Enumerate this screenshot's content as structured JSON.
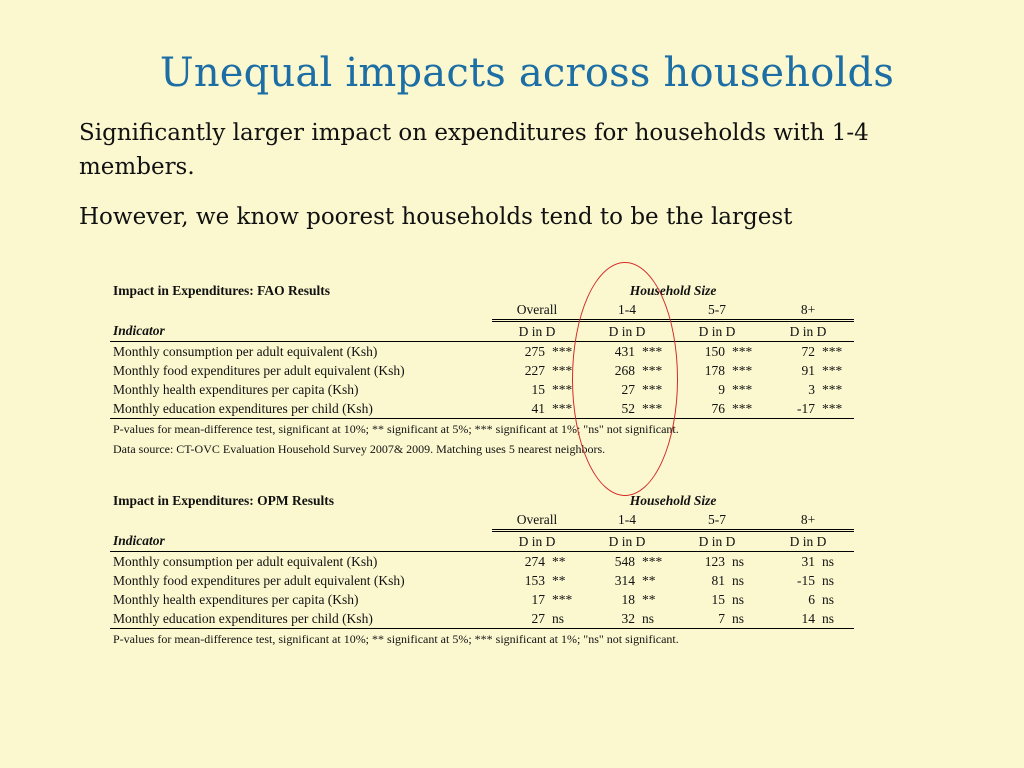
{
  "slide": {
    "title": "Unequal impacts across households",
    "bullets": [
      "Significantly larger impact on expenditures for households with 1-4 members.",
      "However, we know poorest households tend to be the largest"
    ]
  },
  "tables": [
    {
      "title": "Impact in Expenditures: FAO Results",
      "group_header": "Household Size",
      "columns": [
        "Overall",
        "1-4",
        "5-7",
        "8+"
      ],
      "indicator_label": "Indicator",
      "subheader": "D in D",
      "rows": [
        {
          "label": "Monthly consumption per adult equivalent (Ksh)",
          "cells": [
            [
              "275",
              "***"
            ],
            [
              "431",
              "***"
            ],
            [
              "150",
              "***"
            ],
            [
              "72",
              "***"
            ]
          ]
        },
        {
          "label": "Monthly food expenditures per adult equivalent (Ksh)",
          "cells": [
            [
              "227",
              "***"
            ],
            [
              "268",
              "***"
            ],
            [
              "178",
              "***"
            ],
            [
              "91",
              "***"
            ]
          ]
        },
        {
          "label": "Monthly health expenditures per capita (Ksh)",
          "cells": [
            [
              "15",
              "***"
            ],
            [
              "27",
              "***"
            ],
            [
              "9",
              "***"
            ],
            [
              "3",
              "***"
            ]
          ]
        },
        {
          "label": "Monthly education expenditures per child (Ksh)",
          "cells": [
            [
              "41",
              "***"
            ],
            [
              "52",
              "***"
            ],
            [
              "76",
              "***"
            ],
            [
              "-17",
              "***"
            ]
          ]
        }
      ],
      "notes": [
        "P-values for mean-difference test, significant at 10%; ** significant at 5%; *** significant at 1%; \"ns\" not significant.",
        "Data source: CT-OVC Evaluation Household Survey 2007& 2009. Matching uses 5 nearest neighbors."
      ]
    },
    {
      "title": "Impact in Expenditures: OPM Results",
      "group_header": "Household Size",
      "columns": [
        "Overall",
        "1-4",
        "5-7",
        "8+"
      ],
      "indicator_label": "Indicator",
      "subheader": "D in D",
      "rows": [
        {
          "label": "Monthly consumption per adult equivalent (Ksh)",
          "cells": [
            [
              "274",
              "**"
            ],
            [
              "548",
              "***"
            ],
            [
              "123",
              "ns"
            ],
            [
              "31",
              "ns"
            ]
          ]
        },
        {
          "label": "Monthly food expenditures per adult equivalent (Ksh)",
          "cells": [
            [
              "153",
              "**"
            ],
            [
              "314",
              "**"
            ],
            [
              "81",
              "ns"
            ],
            [
              "-15",
              "ns"
            ]
          ]
        },
        {
          "label": "Monthly health expenditures per capita (Ksh)",
          "cells": [
            [
              "17",
              "***"
            ],
            [
              "18",
              "**"
            ],
            [
              "15",
              "ns"
            ],
            [
              "6",
              "ns"
            ]
          ]
        },
        {
          "label": "Monthly education expenditures per child (Ksh)",
          "cells": [
            [
              "27",
              "ns"
            ],
            [
              "32",
              "ns"
            ],
            [
              "7",
              "ns"
            ],
            [
              "14",
              "ns"
            ]
          ]
        }
      ],
      "notes": [
        "P-values for mean-difference test, significant at 10%; ** significant at 5%; *** significant at 1%; \"ns\" not significant."
      ]
    }
  ],
  "colors": {
    "background": "#fbf8d0",
    "title": "#1c6ea4",
    "highlight_circle": "#d42a2a"
  }
}
